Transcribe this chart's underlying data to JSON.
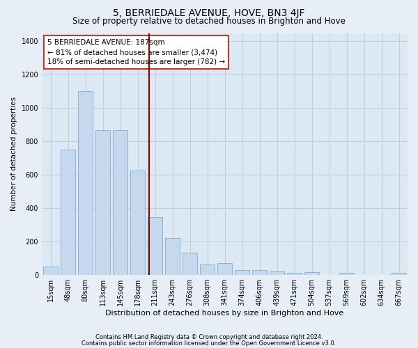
{
  "title": "5, BERRIEDALE AVENUE, HOVE, BN3 4JF",
  "subtitle": "Size of property relative to detached houses in Brighton and Hove",
  "xlabel": "Distribution of detached houses by size in Brighton and Hove",
  "ylabel": "Number of detached properties",
  "categories": [
    "15sqm",
    "48sqm",
    "80sqm",
    "113sqm",
    "145sqm",
    "178sqm",
    "211sqm",
    "243sqm",
    "276sqm",
    "308sqm",
    "341sqm",
    "374sqm",
    "406sqm",
    "439sqm",
    "471sqm",
    "504sqm",
    "537sqm",
    "569sqm",
    "602sqm",
    "634sqm",
    "667sqm"
  ],
  "values": [
    50,
    750,
    1100,
    870,
    870,
    625,
    345,
    222,
    135,
    65,
    72,
    30,
    30,
    22,
    15,
    18,
    0,
    12,
    0,
    0,
    12
  ],
  "bar_color": "#c5d8ed",
  "bar_edge_color": "#7aafd4",
  "vline_pos": 5.65,
  "vline_color": "#8b0000",
  "annotation_text": "5 BERRIEDALE AVENUE: 187sqm\n← 81% of detached houses are smaller (3,474)\n18% of semi-detached houses are larger (782) →",
  "annotation_box_color": "#c0392b",
  "ylim": [
    0,
    1450
  ],
  "yticks": [
    0,
    200,
    400,
    600,
    800,
    1000,
    1200,
    1400
  ],
  "footer1": "Contains HM Land Registry data © Crown copyright and database right 2024.",
  "footer2": "Contains public sector information licensed under the Open Government Licence v3.0.",
  "bg_color": "#e8eef5",
  "plot_bg_color": "#dce8f3",
  "grid_color": "#c5cdd8",
  "title_fontsize": 10,
  "subtitle_fontsize": 8.5,
  "xlabel_fontsize": 8,
  "ylabel_fontsize": 7.5,
  "tick_fontsize": 7,
  "annotation_fontsize": 7.5,
  "footer_fontsize": 6
}
